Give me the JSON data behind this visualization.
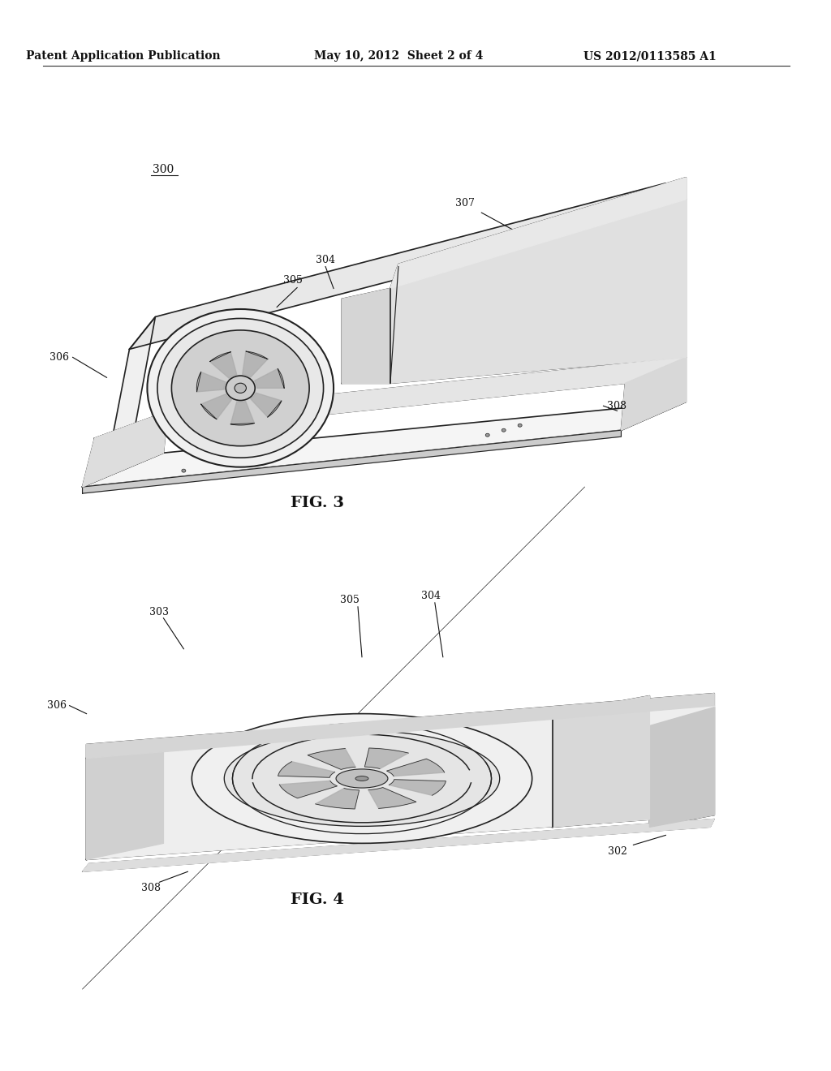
{
  "background_color": "#ffffff",
  "header_left": "Patent Application Publication",
  "header_mid": "May 10, 2012  Sheet 2 of 4",
  "header_right": "US 2012/0113585 A1",
  "fig3_label": "FIG. 3",
  "fig4_label": "FIG. 4",
  "ref_300": "300",
  "ref_302": "302",
  "ref_303": "303",
  "ref_304": "304",
  "ref_305": "305",
  "ref_306": "306",
  "ref_307": "307",
  "ref_308": "308"
}
